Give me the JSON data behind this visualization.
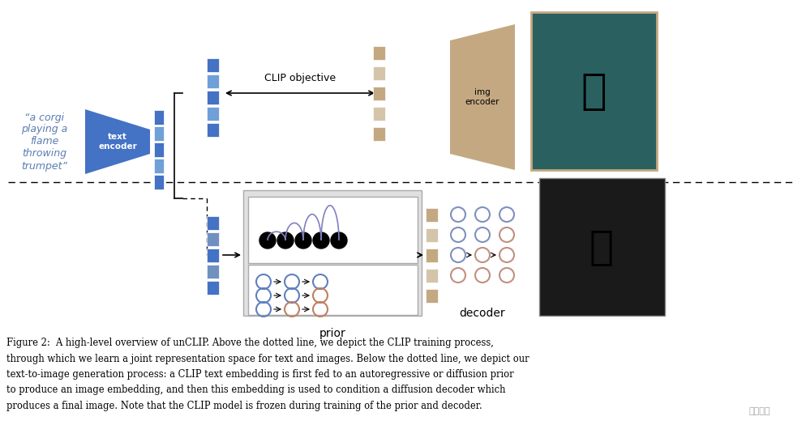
{
  "bg_color": "#ffffff",
  "text_color": "#000000",
  "blue_color": "#4472c4",
  "light_blue": "#aab4d8",
  "tan_color": "#c4a882",
  "light_tan": "#d4bfa0",
  "gray_color": "#b0b0b0",
  "caption_line1": "Figure 2:  A high-level overview of unCLIP. Above the dotted line, we depict the CLIP training process,",
  "caption_line2": "through which we learn a joint representation space for text and images. Below the dotted line, we depict our",
  "caption_line3": "text-to-image generation process: a CLIP text embedding is first fed to an autoregressive or diffusion prior",
  "caption_line4": "to produce an image embedding, and then this embedding is used to condition a diffusion decoder which",
  "caption_line5": "produces a final image. Note that the CLIP model is frozen during training of the prior and decoder.",
  "watermark": "上杉翔二",
  "clip_objective_label": "CLIP objective",
  "img_encoder_label": "img\nencoder",
  "text_encoder_label": "text\nencoder",
  "prior_label": "prior",
  "decoder_label": "decoder",
  "corgi_text": "“a corgi\nplaying a\nflame\nthrowing\ntrumpet”"
}
